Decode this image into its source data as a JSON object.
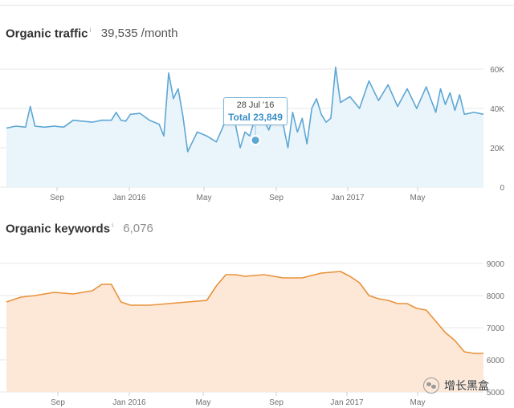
{
  "traffic": {
    "title": "Organic traffic",
    "info_icon": "i",
    "value": "39,535",
    "unit": "/month",
    "tooltip": {
      "date": "28 Jul '16",
      "total": "Total 23,849"
    }
  },
  "keywords": {
    "title": "Organic keywords",
    "info_icon": "i",
    "value": "6,076"
  },
  "watermark": {
    "icon": "wechat-icon",
    "text": "增长黑盒"
  },
  "colors": {
    "traffic_line": "#5da7d4",
    "traffic_fill": "#eaf4fb",
    "keywords_line": "#e8923a",
    "keywords_fill": "#fde8d8"
  },
  "chart_data": [
    {
      "type": "area",
      "x_tick_labels": [
        "Sep",
        "Jan 2016",
        "May",
        "Sep",
        "Jan 2017",
        "May"
      ],
      "y_tick_labels": [
        "60K",
        "40K",
        "20K",
        "0"
      ],
      "ylim": [
        0,
        60000
      ],
      "grid": true,
      "x": [
        0,
        2,
        4,
        5,
        6,
        8,
        10,
        12,
        14,
        16,
        18,
        20,
        22,
        23,
        24,
        25,
        26,
        28,
        30,
        32,
        33,
        34,
        35,
        36,
        37,
        38,
        40,
        42,
        44,
        46,
        48,
        49,
        50,
        51,
        52,
        53,
        54,
        55,
        56,
        58,
        59,
        60,
        61,
        62,
        63,
        64,
        65,
        66,
        67,
        68,
        69,
        70,
        72,
        74,
        76,
        78,
        80,
        82,
        84,
        86,
        88,
        90,
        91,
        92,
        93,
        94,
        95,
        96,
        98,
        100
      ],
      "values": [
        30000,
        31000,
        30500,
        41000,
        31000,
        30500,
        31000,
        30500,
        34000,
        33500,
        33000,
        34000,
        34000,
        38000,
        34000,
        33500,
        37000,
        37500,
        34000,
        32000,
        26000,
        58000,
        45000,
        50000,
        36000,
        18000,
        28000,
        26000,
        23000,
        34000,
        32000,
        20000,
        28000,
        26000,
        34000,
        32000,
        34000,
        29000,
        36000,
        32000,
        20000,
        38000,
        28000,
        35000,
        22000,
        40000,
        45000,
        37000,
        33000,
        35000,
        61000,
        43000,
        46000,
        40000,
        54000,
        44000,
        52000,
        41000,
        50000,
        40000,
        51000,
        38000,
        50000,
        42000,
        48000,
        39000,
        47000,
        37000,
        38000,
        37000
      ],
      "highlight": {
        "label": "28 Jul '16",
        "value": 23849
      }
    },
    {
      "type": "area",
      "x_tick_labels": [
        "Sep",
        "Jan 2016",
        "May",
        "Sep",
        "Jan 2017",
        "May"
      ],
      "y_tick_labels": [
        "9000",
        "8000",
        "7000",
        "6000",
        "5000"
      ],
      "ylim": [
        5000,
        9000
      ],
      "grid": true,
      "x": [
        0,
        3,
        6,
        10,
        14,
        18,
        20,
        22,
        24,
        26,
        30,
        34,
        38,
        42,
        44,
        46,
        48,
        50,
        54,
        58,
        62,
        66,
        70,
        72,
        74,
        76,
        78,
        80,
        82,
        84,
        86,
        88,
        90,
        92,
        94,
        96,
        98,
        100
      ],
      "values": [
        7800,
        7950,
        8000,
        8100,
        8050,
        8150,
        8350,
        8350,
        7800,
        7700,
        7700,
        7750,
        7800,
        7850,
        8300,
        8650,
        8650,
        8600,
        8650,
        8550,
        8550,
        8700,
        8750,
        8600,
        8400,
        8000,
        7900,
        7850,
        7750,
        7750,
        7600,
        7550,
        7200,
        6850,
        6600,
        6250,
        6200,
        6200
      ]
    }
  ]
}
